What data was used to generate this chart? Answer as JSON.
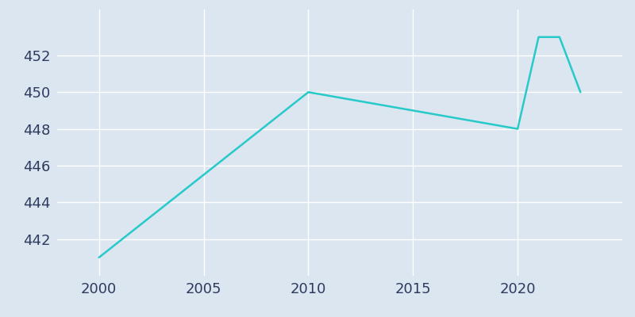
{
  "years": [
    2000,
    2010,
    2020,
    2021,
    2022,
    2023
  ],
  "population": [
    441,
    450,
    448,
    453,
    453,
    450
  ],
  "line_color": "#27C9C9",
  "bg_color": "#dce6f0",
  "grid_color": "#ffffff",
  "tick_color": "#2d3a5e",
  "xlim": [
    1998,
    2025
  ],
  "ylim": [
    440.0,
    454.5
  ],
  "yticks": [
    442,
    444,
    446,
    448,
    450,
    452
  ],
  "xticks": [
    2000,
    2005,
    2010,
    2015,
    2020
  ],
  "figsize": [
    8.0,
    4.0
  ],
  "dpi": 100,
  "tick_fontsize": 13,
  "line_width": 1.8
}
